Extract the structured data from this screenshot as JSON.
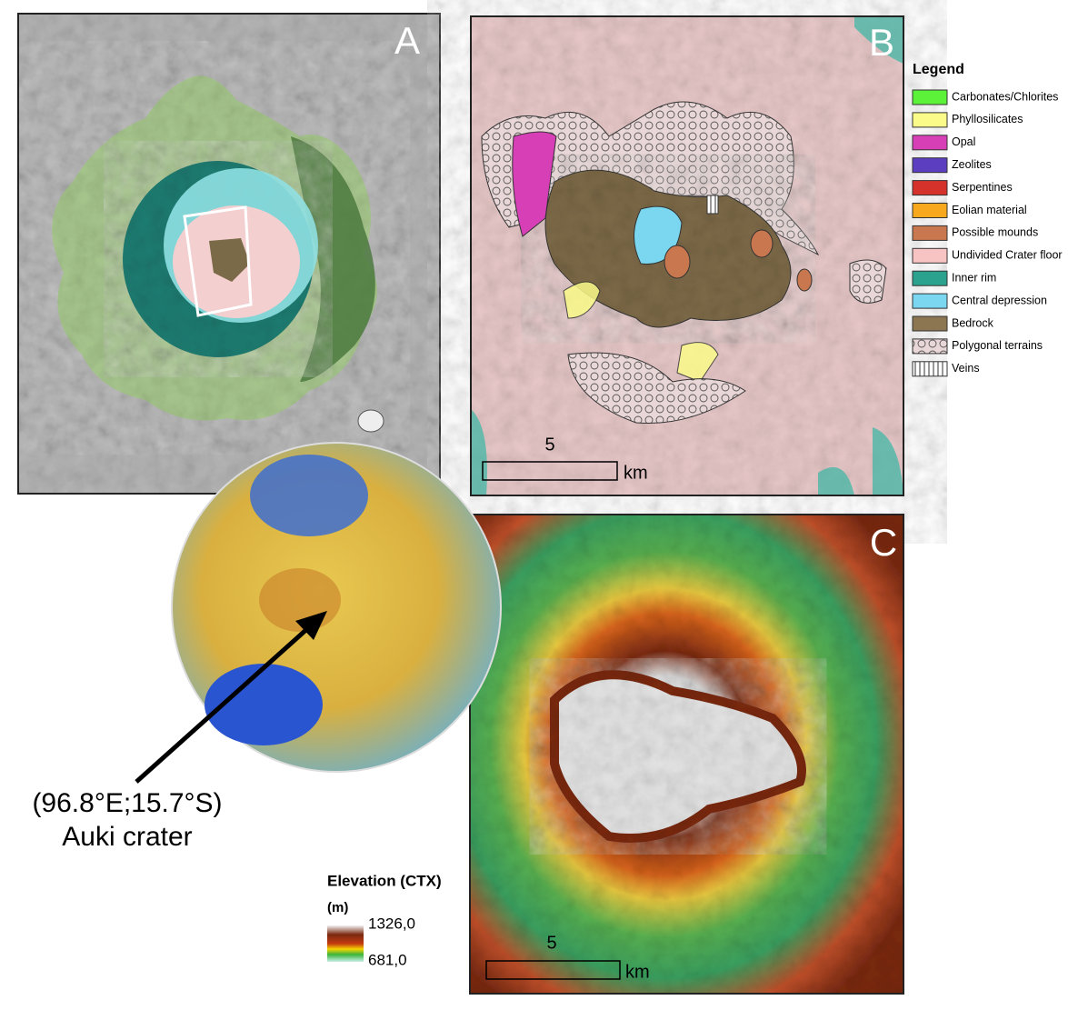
{
  "panels": {
    "a": {
      "label": "A"
    },
    "b": {
      "label": "B",
      "scale_value": "5",
      "scale_unit": "km"
    },
    "c": {
      "label": "C",
      "scale_value": "5",
      "scale_unit": "km"
    }
  },
  "legend": {
    "title": "Legend",
    "items": [
      {
        "label": "Carbonates/Chlorites",
        "color": "#5cf23a"
      },
      {
        "label": "Phyllosilicates",
        "color": "#fbfb8a"
      },
      {
        "label": "Opal",
        "color": "#d63fb5"
      },
      {
        "label": "Zeolites",
        "color": "#5b3fc0"
      },
      {
        "label": "Serpentines",
        "color": "#d6322c"
      },
      {
        "label": "Eolian material",
        "color": "#f7a81c"
      },
      {
        "label": "Possible mounds",
        "color": "#c9774e"
      },
      {
        "label": "Undivided Crater floor",
        "color": "#f8c3c3"
      },
      {
        "label": "Inner rim",
        "color": "#2aa28e"
      },
      {
        "label": "Central depression",
        "color": "#7ad7ef"
      },
      {
        "label": "Bedrock",
        "color": "#8b7651"
      },
      {
        "label": "Polygonal terrains",
        "pattern": "circles"
      },
      {
        "label": "Veins",
        "pattern": "lines"
      }
    ]
  },
  "location": {
    "coordinates": "(96.8°E;15.7°S)",
    "name": "Auki crater"
  },
  "elevation": {
    "title": "Elevation (CTX)",
    "unit": "(m)",
    "max_label": "1326,0",
    "min_label": "681,0"
  }
}
